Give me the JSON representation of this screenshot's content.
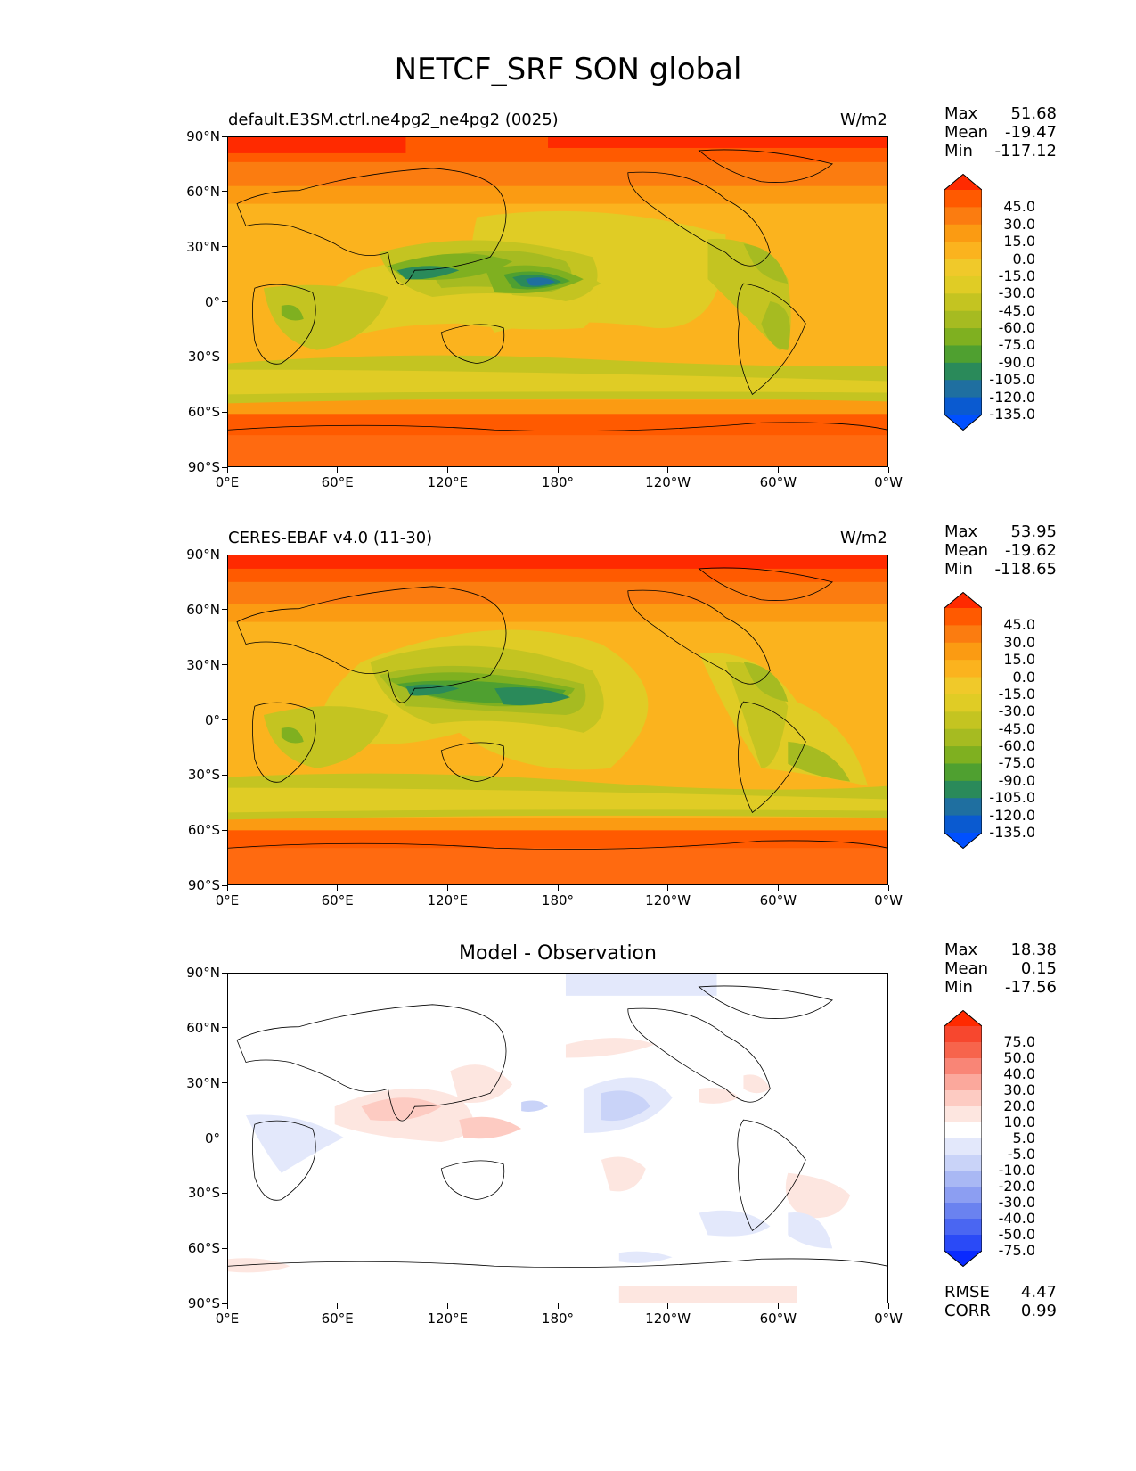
{
  "figure_title": "NETCF_SRF SON global",
  "lon_ticks": [
    "0°E",
    "60°E",
    "120°E",
    "180°",
    "120°W",
    "60°W",
    "0°W"
  ],
  "lat_ticks": [
    "90°N",
    "60°N",
    "30°N",
    "0°",
    "30°S",
    "60°S",
    "90°S"
  ],
  "panels": [
    {
      "name": "model",
      "title_left": "default.E3SM.ctrl.ne4pg2_ne4pg2 (0025)",
      "title_right": "W/m2",
      "stats": {
        "max_label": "Max",
        "max": "51.68",
        "mean_label": "Mean",
        "mean": "-19.47",
        "min_label": "Min",
        "min": "-117.12"
      },
      "colorbar_labels": [
        "45.0",
        "30.0",
        "15.0",
        "0.0",
        "-15.0",
        "-30.0",
        "-45.0",
        "-60.0",
        "-75.0",
        "-90.0",
        "-105.0",
        "-120.0",
        "-135.0"
      ],
      "colorbar_colors": [
        "#ff2a00",
        "#ff5a00",
        "#fb7c10",
        "#fb9b12",
        "#fbb31e",
        "#f0c92a",
        "#e0cc25",
        "#c4c421",
        "#a6bb21",
        "#7fb020",
        "#4fa030",
        "#2a8a5a",
        "#1f6fa0",
        "#0a5ad0",
        "#0050ff"
      ]
    },
    {
      "name": "observation",
      "title_left": "CERES-EBAF v4.0 (11-30)",
      "title_right": "W/m2",
      "stats": {
        "max_label": "Max",
        "max": "53.95",
        "mean_label": "Mean",
        "mean": "-19.62",
        "min_label": "Min",
        "min": "-118.65"
      },
      "colorbar_labels": [
        "45.0",
        "30.0",
        "15.0",
        "0.0",
        "-15.0",
        "-30.0",
        "-45.0",
        "-60.0",
        "-75.0",
        "-90.0",
        "-105.0",
        "-120.0",
        "-135.0"
      ],
      "colorbar_colors": [
        "#ff2a00",
        "#ff5a00",
        "#fb7c10",
        "#fb9b12",
        "#fbb31e",
        "#f0c92a",
        "#e0cc25",
        "#c4c421",
        "#a6bb21",
        "#7fb020",
        "#4fa030",
        "#2a8a5a",
        "#1f6fa0",
        "#0a5ad0",
        "#0050ff"
      ]
    },
    {
      "name": "difference",
      "title_center": "Model - Observation",
      "stats": {
        "max_label": "Max",
        "max": "18.38",
        "mean_label": "Mean",
        "mean": "0.15",
        "min_label": "Min",
        "min": "-17.56"
      },
      "colorbar_labels": [
        "75.0",
        "50.0",
        "40.0",
        "30.0",
        "20.0",
        "10.0",
        "5.0",
        "-5.0",
        "-10.0",
        "-20.0",
        "-30.0",
        "-40.0",
        "-50.0",
        "-75.0"
      ],
      "colorbar_colors": [
        "#ff2a00",
        "#f7472e",
        "#f7644c",
        "#f98576",
        "#fba89c",
        "#fdcbc2",
        "#fde6e0",
        "#ffffff",
        "#e3e8fb",
        "#c9d3f8",
        "#a9b8f4",
        "#8c9ef2",
        "#6a82f0",
        "#4a66f2",
        "#2a4af7",
        "#0a2aff"
      ],
      "rmse_label": "RMSE",
      "rmse": "4.47",
      "corr_label": "CORR",
      "corr": "0.99"
    }
  ]
}
